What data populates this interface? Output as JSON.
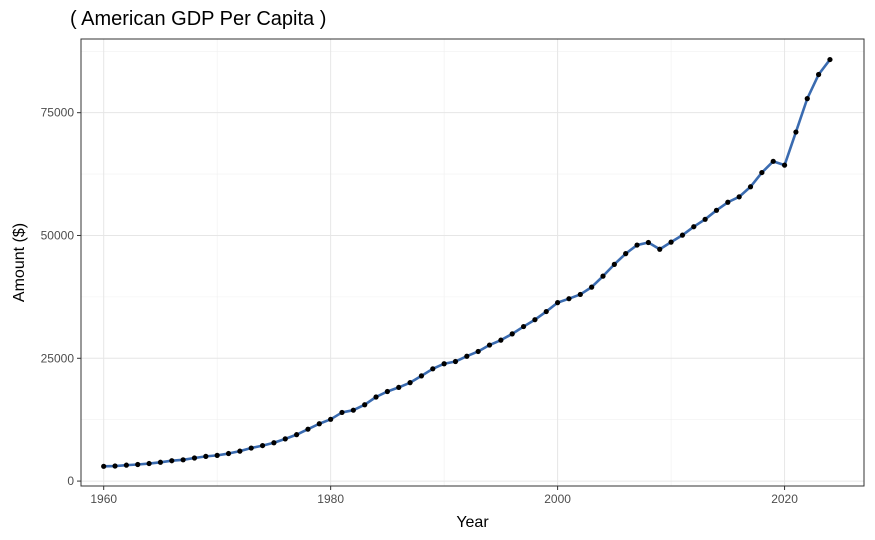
{
  "chart_data": {
    "type": "line",
    "title": "( American GDP Per Capita )",
    "xlabel": "Year",
    "ylabel": "Amount ($)",
    "xlim": [
      1958,
      2027
    ],
    "ylim": [
      -1000,
      90000
    ],
    "x_ticks": [
      1960,
      1980,
      2000,
      2020
    ],
    "y_ticks": [
      0,
      25000,
      50000,
      75000
    ],
    "grid": true,
    "legend": "none",
    "line_color": "#3a6bb0",
    "point_color": "#000000",
    "series": [
      {
        "x": [
          1960,
          1961,
          1962,
          1963,
          1964,
          1965,
          1966,
          1967,
          1968,
          1969,
          1970,
          1971,
          1972,
          1973,
          1974,
          1975,
          1976,
          1977,
          1978,
          1979,
          1980,
          1981,
          1982,
          1983,
          1984,
          1985,
          1986,
          1987,
          1988,
          1989,
          1990,
          1991,
          1992,
          1993,
          1994,
          1995,
          1996,
          1997,
          1998,
          1999,
          2000,
          2001,
          2002,
          2003,
          2004,
          2005,
          2006,
          2007,
          2008,
          2009,
          2010,
          2011,
          2012,
          2013,
          2014,
          2015,
          2016,
          2017,
          2018,
          2019,
          2020,
          2021,
          2022,
          2023,
          2024
        ],
        "values": [
          3007,
          3067,
          3244,
          3375,
          3574,
          3828,
          4146,
          4336,
          4696,
          5032,
          5234,
          5609,
          6094,
          6726,
          7226,
          7801,
          8592,
          9453,
          10565,
          11674,
          12575,
          13976,
          14434,
          15544,
          17121,
          18237,
          19071,
          20039,
          21417,
          22857,
          23889,
          24342,
          25419,
          26387,
          27695,
          28691,
          29968,
          31459,
          32854,
          34516,
          36330,
          37134,
          37998,
          39490,
          41725,
          44123,
          46302,
          48050,
          48570,
          47195,
          48651,
          50066,
          51784,
          53291,
          55124,
          56763,
          57867,
          59915,
          62805,
          65095,
          64317,
          71056,
          77860,
          82769,
          85810
        ]
      }
    ]
  }
}
